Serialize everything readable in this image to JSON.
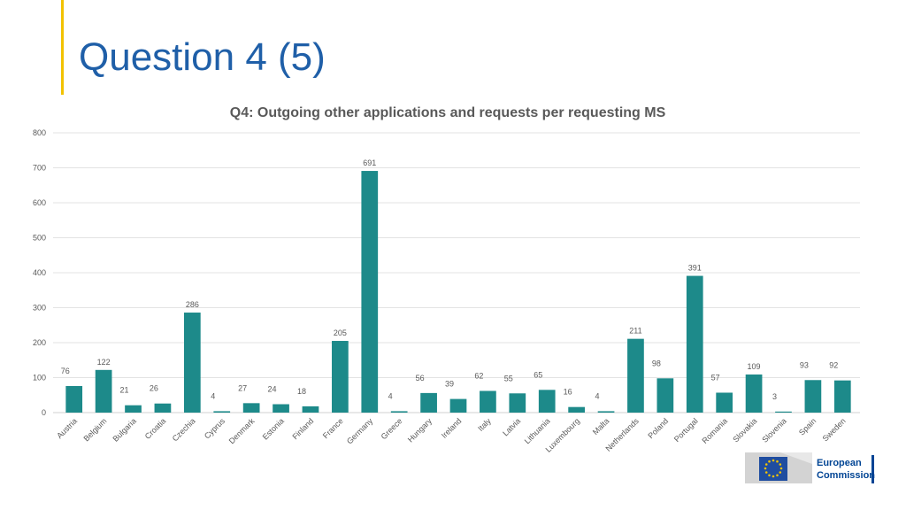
{
  "slide": {
    "title": "Question 4 (5)"
  },
  "logo": {
    "text_line1": "European",
    "text_line2": "Commission"
  },
  "colors": {
    "title": "#1f5fa8",
    "accent": "#f2c200",
    "bar": "#1d8a8a",
    "grid": "#e3e3e3",
    "text": "#595959"
  },
  "chart_data": {
    "type": "bar",
    "title": "Q4: Outgoing other applications and requests per requesting MS",
    "xlabel": "",
    "ylabel": "",
    "ylim": [
      0,
      800
    ],
    "yticks": [
      0,
      100,
      200,
      300,
      400,
      500,
      600,
      700,
      800
    ],
    "grid": true,
    "legend": "none",
    "data_labels": true,
    "categories": [
      "Austria",
      "Belgium",
      "Bulgaria",
      "Croatia",
      "Czechia",
      "Cyprus",
      "Denmark",
      "Estonia",
      "Finland",
      "France",
      "Germany",
      "Greece",
      "Hungary",
      "Ireland",
      "Italy",
      "Latvia",
      "Lithuania",
      "Luxembourg",
      "Malta",
      "Netherlands",
      "Poland",
      "Portugal",
      "Romania",
      "Slovakia",
      "Slovenia",
      "Spain",
      "Sweden"
    ],
    "values": [
      76,
      122,
      21,
      26,
      286,
      4,
      27,
      24,
      18,
      205,
      691,
      4,
      56,
      39,
      62,
      55,
      65,
      16,
      4,
      211,
      98,
      391,
      57,
      109,
      3,
      93,
      92
    ]
  }
}
